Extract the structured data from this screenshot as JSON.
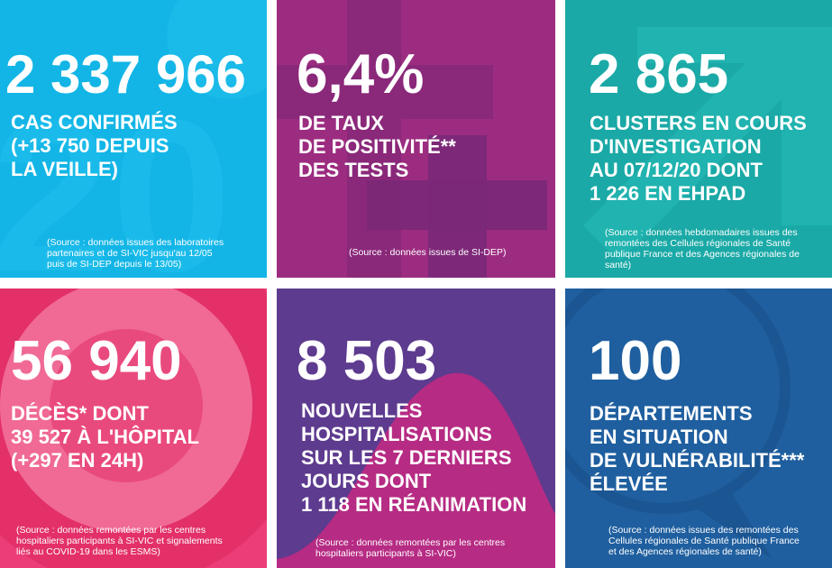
{
  "colors": {
    "tile_cases": "#12b5e6",
    "tile_positivity": "#9c2c80",
    "tile_clusters": "#1aa9a6",
    "tile_deaths": "#ec3d78",
    "tile_hospital": "#5d3b8f",
    "tile_departments": "#1f5f9f"
  },
  "tiles": {
    "cases": {
      "number": "2 337 966",
      "label": "CAS CONFIRMÉS\n(+13 750 DEPUIS\nLA VEILLE)",
      "source": "(Source : données issues des laboratoires\npartenaires et de SI-VIC jusqu'au 12/05\npuis de SI-DEP depuis le 13/05)",
      "icon": "covid-virus-icon"
    },
    "positivity": {
      "number": "6,4%",
      "label": "DE TAUX\nDE POSITIVITÉ**\nDES TESTS",
      "source": "(Source : données issues de SI-DEP)",
      "icon": "plus-cross-icon"
    },
    "clusters": {
      "number": "2 865",
      "label": "CLUSTERS EN COURS\nD'INVESTIGATION\nAU 07/12/20 DONT\n1 226 EN EHPAD",
      "source": "(Source : données hebdomadaires issues des\nremontées des Cellules régionales de Santé\npublique France et des Agences régionales de\nsanté)",
      "icon": "trend-arrow-icon"
    },
    "deaths": {
      "number": "56 940",
      "label": "DÉCÈS* DONT\n39 527 À L'HÔPITAL\n(+297 EN 24H)",
      "source": "(Source : données remontées par les centres\nhospitaliers participants à SI-VIC et signalements\nliés au COVID-19 dans les ESMS)",
      "icon": "target-circles-icon"
    },
    "hospital": {
      "number": "8 503",
      "label": "NOUVELLES\nHOSPITALISATIONS\nSUR LES 7 DERNIERS\nJOURS DONT\n1 118 EN RÉANIMATION",
      "source": "(Source : données remontées par les centres\nhospitaliers participants à SI-VIC)",
      "icon": "bell-curve-icon"
    },
    "departments": {
      "number": "100",
      "label": "DÉPARTEMENTS\nEN SITUATION\nDE VULNÉRABILITÉ***\nÉLEVÉE",
      "source": "(Source : données issues des remontées des\nCellules régionales de Santé publique France\net des Agences régionales de santé)",
      "icon": "info-bubble-icon"
    }
  }
}
